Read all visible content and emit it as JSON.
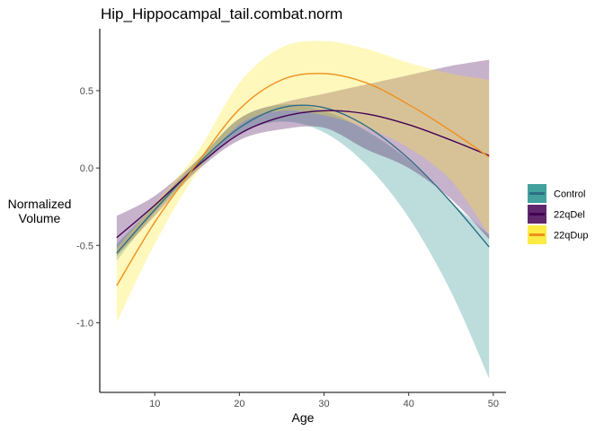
{
  "chart_data": {
    "type": "line",
    "title": "Hip_Hippocampal_tail.combat.norm",
    "xlabel": "Age",
    "ylabel": [
      "Normalized",
      "Volume"
    ],
    "xlim": [
      3.5,
      51.5
    ],
    "ylim": [
      -1.45,
      0.9
    ],
    "xticks": [
      10,
      20,
      30,
      40,
      50
    ],
    "yticks": [
      -1.0,
      -0.5,
      0.0,
      0.5
    ],
    "ytick_labels": [
      "-1.0",
      "-0.5",
      "0.0",
      "0.5"
    ],
    "grid": false,
    "legend_position": "right",
    "series": [
      {
        "name": "Control",
        "color": "#21908C",
        "line_color": "#2F6D85",
        "x": [
          5.5,
          10,
          15,
          20,
          25,
          30,
          35,
          40,
          45,
          49.5
        ],
        "y": [
          -0.55,
          -0.27,
          0.02,
          0.26,
          0.39,
          0.39,
          0.27,
          0.06,
          -0.22,
          -0.51
        ],
        "lower": [
          -0.6,
          -0.29,
          -0.01,
          0.22,
          0.3,
          0.23,
          0.02,
          -0.32,
          -0.8,
          -1.36
        ],
        "upper": [
          -0.49,
          -0.24,
          0.05,
          0.32,
          0.41,
          0.37,
          0.24,
          0.05,
          -0.22,
          -0.43
        ]
      },
      {
        "name": "22qDel",
        "color": "#440154",
        "line_color": "#440154",
        "x": [
          5.5,
          10,
          15,
          20,
          25,
          30,
          35,
          40,
          45,
          49.5
        ],
        "y": [
          -0.45,
          -0.24,
          0.01,
          0.22,
          0.33,
          0.37,
          0.35,
          0.28,
          0.18,
          0.08
        ],
        "lower": [
          -0.57,
          -0.31,
          -0.02,
          0.18,
          0.25,
          0.26,
          0.12,
          0.0,
          -0.2,
          -0.46
        ],
        "upper": [
          -0.31,
          -0.18,
          0.05,
          0.32,
          0.42,
          0.48,
          0.54,
          0.6,
          0.66,
          0.7
        ]
      },
      {
        "name": "22qDup",
        "color": "#FDE725",
        "line_color": "#F18F1B",
        "x": [
          5.5,
          10,
          15,
          20,
          25,
          30,
          35,
          40,
          45,
          49.5
        ],
        "y": [
          -0.76,
          -0.35,
          0.03,
          0.38,
          0.57,
          0.61,
          0.55,
          0.41,
          0.24,
          0.07
        ],
        "lower": [
          -1.0,
          -0.49,
          -0.03,
          0.28,
          0.37,
          0.34,
          0.26,
          0.13,
          -0.08,
          -0.43
        ],
        "upper": [
          -0.52,
          -0.23,
          0.1,
          0.55,
          0.78,
          0.82,
          0.77,
          0.68,
          0.61,
          0.57
        ]
      }
    ]
  }
}
